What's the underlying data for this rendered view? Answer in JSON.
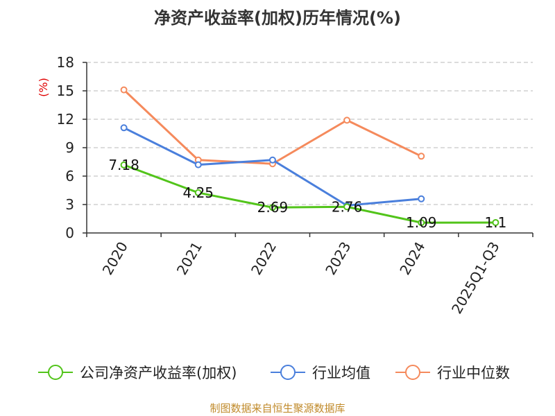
{
  "chart_data": {
    "type": "line",
    "title": "净资产收益率(加权)历年情况(%)",
    "ylabel": "(%)",
    "categories": [
      "2020",
      "2021",
      "2022",
      "2023",
      "2024",
      "2025Q1-Q3"
    ],
    "ylim": [
      0,
      18
    ],
    "yticks": [
      0,
      3,
      6,
      9,
      12,
      15,
      18
    ],
    "grid": true,
    "legend_position": "bottom",
    "series": [
      {
        "name": "公司净资产收益率(加权)",
        "color": "#52c41a",
        "values": [
          7.18,
          4.25,
          2.69,
          2.76,
          1.09,
          1.1
        ],
        "labels": [
          "7.18",
          "4.25",
          "2.69",
          "2.76",
          "1.09",
          "1.1"
        ]
      },
      {
        "name": "行业均值",
        "color": "#4a7fdc",
        "values": [
          11.1,
          7.2,
          7.7,
          2.9,
          3.6,
          null
        ]
      },
      {
        "name": "行业中位数",
        "color": "#f58a5c",
        "values": [
          15.1,
          7.7,
          7.3,
          11.9,
          8.1,
          null
        ]
      }
    ],
    "source": "制图数据来自恒生聚源数据库"
  }
}
